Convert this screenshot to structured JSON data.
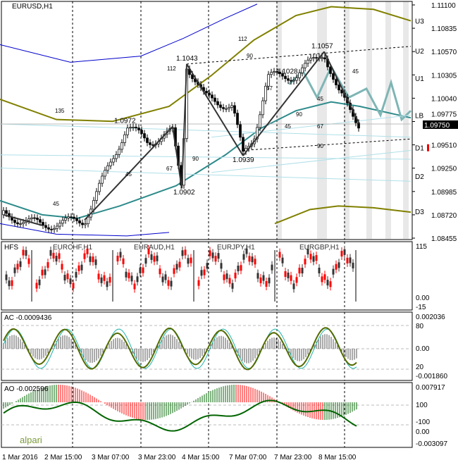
{
  "main": {
    "title": "EURUSD,H1",
    "current_price": "1.09750",
    "price_ticks": [
      "1.11100",
      "1.10835",
      "1.10570",
      "1.10305",
      "1.10040",
      "1.09775",
      "1.09510",
      "1.09250",
      "1.08985",
      "1.08720",
      "1.08455"
    ],
    "levels": [
      "U3",
      "U2",
      "U1",
      "LB",
      "D1",
      "D2",
      "D3"
    ],
    "pattern_labels": [
      {
        "t": "1.1043"
      },
      {
        "t": "1.0972"
      },
      {
        "t": "1.0902"
      },
      {
        "t": "1.0939"
      },
      {
        "t": "1.1028"
      },
      {
        "t": "1.1057"
      }
    ],
    "fib_labels": [
      "135",
      "112",
      "90",
      "45",
      "67",
      "90",
      "112",
      "90",
      "67",
      "45",
      "45",
      "67",
      "45",
      "90",
      "45"
    ],
    "close_points": [
      [
        1.0872,
        1.086,
        1.0866,
        1.0945,
        1.0972,
        1.0955,
        1.0965,
        1.0902,
        1.1043,
        1.1005,
        1.0995,
        1.0939,
        1.096,
        1.1028,
        1.103,
        1.1057,
        1.101,
        1.0975
      ]
    ]
  },
  "hfs": {
    "title": "HFS",
    "pairs": [
      "EURCHF,H1",
      "EURAUD,H1",
      "EURJPY,H1",
      "EURGBP,H1"
    ],
    "ticks": [
      "115",
      "0.00",
      "-15"
    ]
  },
  "ac": {
    "title": "AC -0.0009436",
    "ticks": [
      "0.002036",
      "80",
      "0.00",
      "20",
      "-0.001860"
    ]
  },
  "ao": {
    "title": "AO -0.002596",
    "ticks": [
      "0.007917",
      "100",
      "-100",
      "0.00",
      "-0.003097"
    ],
    "logo": "alpari"
  },
  "time_labels": [
    "1 Mar 2016",
    "2 Mar 15:00",
    "3 Mar 07:00",
    "3 Mar 23:00",
    "4 Mar 15:00",
    "7 Mar 07:00",
    "7 Mar 23:00",
    "8 Mar 15:00"
  ],
  "colors": {
    "up": "#3c3c3c",
    "down": "#ff0000",
    "lb": "#2e8b8b",
    "band": "#808000",
    "blue": "#0000cc",
    "ao": "#006400"
  }
}
